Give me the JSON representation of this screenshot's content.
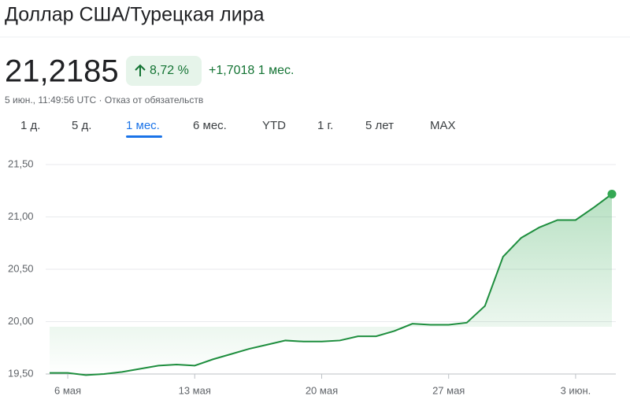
{
  "header": {
    "title": "Доллар США/Турецкая лира",
    "price": "21,2185",
    "change_percent": "8,72 %",
    "change": "+1,7018 1 мес.",
    "timestamp": "5 июн., 11:49:56 UTC · Отказ от обязательств"
  },
  "tabs": {
    "items": [
      "1 д.",
      "5 д.",
      "1 мес.",
      "6 мес.",
      "YTD",
      "1 г.",
      "5 лет",
      "MAX"
    ],
    "active": 2
  },
  "chart_data": {
    "type": "area",
    "color": "#1e8e3e",
    "grid": true,
    "categories": [
      null,
      "6 мая",
      null,
      null,
      null,
      null,
      null,
      null,
      "13 мая",
      null,
      null,
      null,
      null,
      null,
      null,
      "20 мая",
      null,
      null,
      null,
      null,
      null,
      null,
      "27 мая",
      null,
      null,
      null,
      null,
      null,
      null,
      "3 июн.",
      null,
      null
    ],
    "values": [
      19.51,
      19.51,
      19.49,
      19.5,
      19.52,
      19.55,
      19.58,
      19.59,
      19.58,
      19.64,
      19.69,
      19.74,
      19.78,
      19.82,
      19.81,
      19.81,
      19.82,
      19.86,
      19.86,
      19.91,
      19.98,
      19.97,
      19.97,
      19.99,
      20.15,
      20.62,
      20.8,
      20.9,
      20.97,
      20.97,
      21.09,
      21.2185
    ],
    "ylim": [
      19.5,
      21.5
    ],
    "yticks": [
      {
        "value": 19.5,
        "label": "19,50"
      },
      {
        "value": 20,
        "label": "20,00"
      },
      {
        "value": 20.5,
        "label": "20,50"
      },
      {
        "value": 21,
        "label": "21,00"
      },
      {
        "value": 21.5,
        "label": "21,50"
      }
    ]
  }
}
